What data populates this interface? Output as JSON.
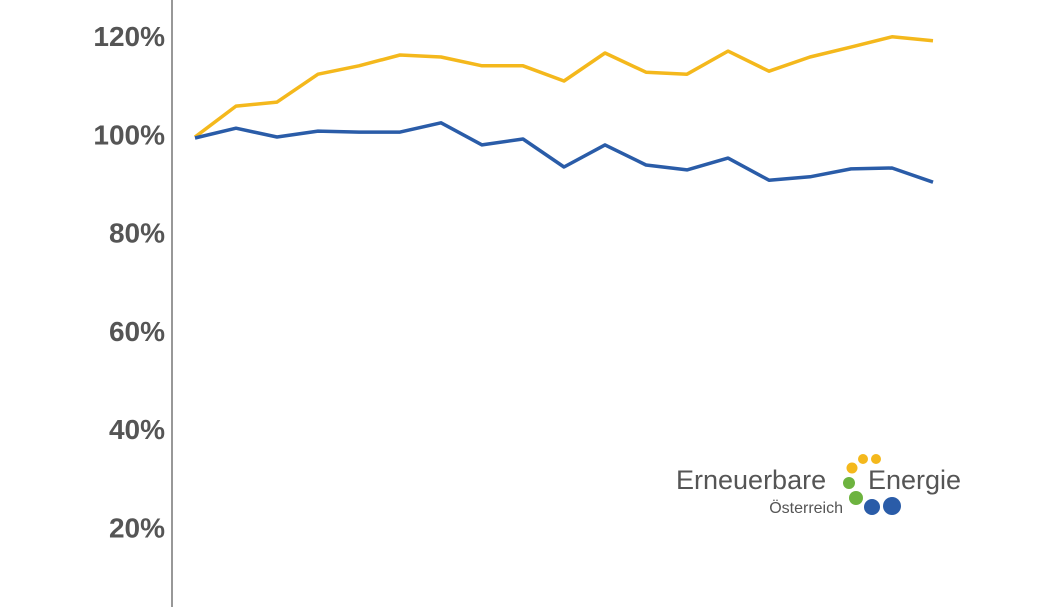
{
  "chart_data": {
    "type": "line",
    "categories": [
      null,
      null,
      null,
      null,
      null,
      null,
      null,
      null,
      null,
      null,
      null,
      null,
      null,
      null,
      null,
      null,
      null,
      null,
      null
    ],
    "series": [
      {
        "color": "#f4b81c",
        "values": [
          100,
          106.3,
          107.1,
          112.8,
          114.5,
          116.7,
          116.3,
          114.5,
          114.5,
          111.4,
          117.1,
          113.2,
          112.8,
          117.5,
          113.4,
          116.3,
          118.3,
          120.4,
          119.6
        ]
      },
      {
        "color": "#2a5ca8",
        "values": [
          99.8,
          101.8,
          100,
          101.2,
          101.0,
          101.0,
          102.9,
          98.4,
          99.6,
          93.9,
          98.4,
          94.3,
          93.3,
          95.7,
          91.2,
          91.9,
          93.5,
          93.7,
          90.8
        ]
      }
    ],
    "ylim": [
      4.3,
      127.9
    ],
    "yticks": [
      {
        "value": 20,
        "label": "20%"
      },
      {
        "value": 40,
        "label": "40%"
      },
      {
        "value": 60,
        "label": "60%"
      },
      {
        "value": 80,
        "label": "80%"
      },
      {
        "value": 100,
        "label": "100%"
      },
      {
        "value": 120,
        "label": "120%"
      }
    ]
  },
  "logo": {
    "word1": "Erneuerbare",
    "word2": "Energie",
    "subtitle": "Österreich"
  }
}
